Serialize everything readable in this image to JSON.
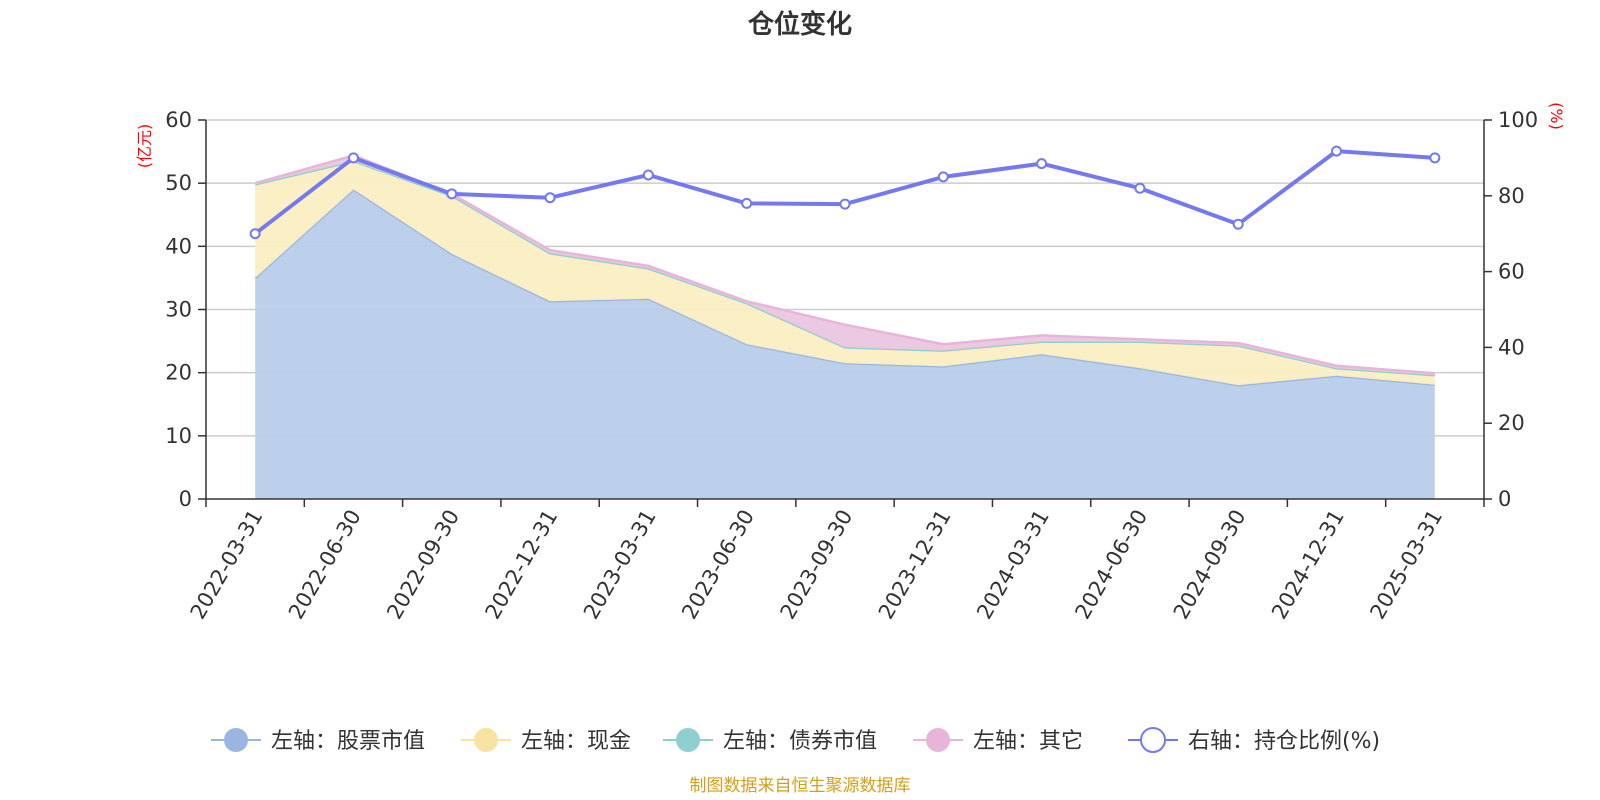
{
  "chart_data": {
    "type": "area",
    "title": "仓位变化",
    "left_unit": "(亿元)",
    "right_unit": "(%)",
    "categories": [
      "2022-03-31",
      "2022-06-30",
      "2022-09-30",
      "2022-12-31",
      "2023-03-31",
      "2023-06-30",
      "2023-09-30",
      "2023-12-31",
      "2024-03-31",
      "2024-06-30",
      "2024-09-30",
      "2024-12-31",
      "2025-03-31"
    ],
    "left_axis": {
      "min": 0,
      "max": 60,
      "ticks": [
        0,
        10,
        20,
        30,
        40,
        50,
        60
      ]
    },
    "right_axis": {
      "min": 0,
      "max": 100,
      "ticks": [
        0,
        20,
        40,
        60,
        80,
        100
      ]
    },
    "grid": true,
    "stacked": true,
    "series": [
      {
        "name": "左轴：股票市值",
        "axis": "left",
        "kind": "area",
        "color": "#9ab6e0",
        "fill": "#b8cdea",
        "values": [
          35.0,
          49.0,
          38.8,
          31.3,
          31.7,
          24.5,
          21.5,
          21.0,
          22.9,
          20.7,
          18.0,
          19.5,
          18.1
        ]
      },
      {
        "name": "左轴：现金",
        "axis": "left",
        "kind": "area",
        "color": "#f9e3a3",
        "fill": "#fbeec3",
        "values": [
          14.8,
          4.5,
          9.2,
          7.6,
          4.8,
          6.5,
          2.5,
          2.5,
          2.0,
          4.2,
          6.3,
          1.2,
          1.5
        ]
      },
      {
        "name": "左轴：债券市值",
        "axis": "left",
        "kind": "area",
        "color": "#8fcfcf",
        "fill": "#b3e0e0",
        "values": [
          0,
          0,
          0,
          0,
          0,
          0,
          0,
          0,
          0,
          0,
          0,
          0,
          0
        ]
      },
      {
        "name": "左轴：其它",
        "axis": "left",
        "kind": "area",
        "color": "#e7b5da",
        "fill": "#ebc6e0",
        "values": [
          0.2,
          0.9,
          0.3,
          0.5,
          0.4,
          0.3,
          3.6,
          1.0,
          1.0,
          0.4,
          0.4,
          0.4,
          0.3
        ]
      },
      {
        "name": "右轴：持仓比例(%)",
        "axis": "right",
        "kind": "line",
        "color": "#7479ed",
        "values": [
          70.0,
          90.0,
          80.5,
          79.5,
          85.5,
          78.0,
          77.8,
          85.0,
          88.5,
          82.0,
          72.5,
          91.8,
          90.0
        ]
      }
    ],
    "legend_position": "bottom"
  },
  "source": "制图数据来自恒生聚源数据库"
}
